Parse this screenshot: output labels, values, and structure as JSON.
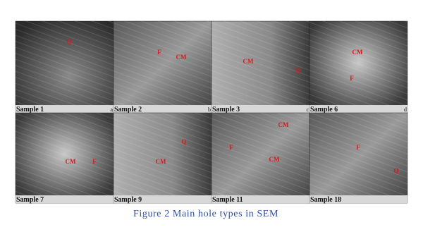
{
  "panels": [
    {
      "sample": "Sample 1",
      "letter": "a",
      "labels": [
        "Q"
      ]
    },
    {
      "sample": "Sample 2",
      "letter": "b",
      "labels": [
        "F",
        "CM"
      ]
    },
    {
      "sample": "Sample 3",
      "letter": "c",
      "labels": [
        "CM",
        "Q"
      ]
    },
    {
      "sample": "Sample 6",
      "letter": "d",
      "labels": [
        "CM",
        "F"
      ]
    },
    {
      "sample": "Sample 7",
      "labels": [
        "CM",
        "F"
      ]
    },
    {
      "sample": "Sample 9",
      "labels": [
        "Q",
        "CM"
      ]
    },
    {
      "sample": "Sample 11",
      "labels": [
        "CM",
        "F",
        "CM"
      ]
    },
    {
      "sample": "Sample 18",
      "labels": [
        "F",
        "Q"
      ]
    }
  ],
  "caption": "Figure 2 Main hole types in SEM"
}
